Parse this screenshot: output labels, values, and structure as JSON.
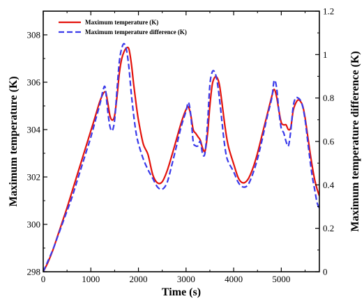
{
  "chart_data": {
    "type": "line",
    "title": "",
    "xlabel": "Time (s)",
    "ylabel_left": "Maximum temperature (K)",
    "ylabel_right": "Maximum temperature difference (K)",
    "xlim": [
      0,
      5800
    ],
    "ylim_left": [
      298,
      309
    ],
    "ylim_right": [
      0,
      1.2
    ],
    "x_ticks": [
      0,
      1000,
      2000,
      3000,
      4000,
      5000
    ],
    "y_left_ticks": [
      298,
      300,
      302,
      304,
      306,
      308
    ],
    "y_right_ticks": [
      0,
      0.2,
      0.4,
      0.6,
      0.8,
      1,
      1.2
    ],
    "x_tick_labels": [
      "0",
      "1000",
      "2000",
      "3000",
      "4000",
      "5000"
    ],
    "y_left_tick_labels": [
      "298",
      "300",
      "302",
      "304",
      "306",
      "308"
    ],
    "y_right_tick_labels": [
      "0",
      "0.2",
      "0.4",
      "0.6",
      "0.8",
      "1",
      "1.2"
    ],
    "legend_position": "top-left",
    "grid": false,
    "series": [
      {
        "name": "Maximum temperature (K)",
        "axis": "left",
        "color": "#e3120b",
        "style": "solid",
        "x": [
          0,
          100,
          200,
          300,
          400,
          500,
          600,
          700,
          800,
          900,
          1000,
          1100,
          1200,
          1300,
          1350,
          1400,
          1450,
          1500,
          1550,
          1600,
          1650,
          1700,
          1750,
          1800,
          1850,
          1900,
          1950,
          2000,
          2100,
          2200,
          2300,
          2400,
          2500,
          2600,
          2700,
          2800,
          2900,
          3000,
          3050,
          3100,
          3150,
          3200,
          3250,
          3300,
          3350,
          3400,
          3450,
          3500,
          3550,
          3600,
          3650,
          3700,
          3750,
          3800,
          3850,
          3900,
          4000,
          4100,
          4200,
          4300,
          4400,
          4500,
          4600,
          4700,
          4800,
          4850,
          4900,
          4950,
          5000,
          5050,
          5100,
          5150,
          5200,
          5250,
          5300,
          5350,
          5400,
          5450,
          5500,
          5550,
          5600,
          5650,
          5700,
          5750,
          5800
        ],
        "values": [
          298.0,
          298.4,
          298.9,
          299.5,
          300.1,
          300.7,
          301.35,
          302.0,
          302.65,
          303.3,
          303.95,
          304.6,
          305.25,
          305.6,
          305.2,
          304.6,
          304.4,
          304.6,
          305.4,
          306.4,
          307.0,
          307.3,
          307.45,
          307.4,
          306.8,
          305.9,
          305.1,
          304.4,
          303.4,
          302.95,
          302.1,
          301.75,
          301.8,
          302.25,
          302.9,
          303.6,
          304.3,
          304.85,
          304.95,
          304.6,
          304.0,
          303.85,
          303.7,
          303.55,
          303.2,
          303.1,
          303.8,
          305.0,
          305.9,
          306.2,
          306.2,
          305.9,
          305.2,
          304.4,
          303.7,
          303.2,
          302.55,
          301.95,
          301.75,
          301.9,
          302.35,
          303.0,
          303.8,
          304.6,
          305.4,
          305.7,
          305.4,
          304.8,
          304.3,
          304.2,
          304.2,
          304.0,
          304.1,
          304.8,
          305.1,
          305.25,
          305.2,
          305.0,
          304.5,
          303.8,
          303.1,
          302.45,
          301.9,
          301.5,
          301.2
        ]
      },
      {
        "name": "Maximum temperature difference (K)",
        "axis": "right",
        "color": "#3a3aea",
        "style": "dashed",
        "x": [
          0,
          100,
          200,
          300,
          400,
          500,
          600,
          700,
          800,
          900,
          1000,
          1100,
          1200,
          1250,
          1300,
          1350,
          1400,
          1450,
          1500,
          1550,
          1600,
          1650,
          1700,
          1750,
          1800,
          1850,
          1900,
          1950,
          2000,
          2100,
          2200,
          2300,
          2400,
          2500,
          2600,
          2700,
          2800,
          2900,
          3000,
          3050,
          3100,
          3150,
          3200,
          3250,
          3300,
          3350,
          3400,
          3450,
          3500,
          3550,
          3600,
          3650,
          3700,
          3750,
          3800,
          3850,
          3900,
          4000,
          4100,
          4200,
          4300,
          4400,
          4500,
          4600,
          4700,
          4800,
          4850,
          4900,
          4950,
          5000,
          5050,
          5100,
          5150,
          5200,
          5250,
          5300,
          5350,
          5400,
          5450,
          5500,
          5550,
          5600,
          5650,
          5700,
          5750,
          5800
        ],
        "values": [
          0.0,
          0.05,
          0.1,
          0.16,
          0.22,
          0.28,
          0.34,
          0.41,
          0.48,
          0.55,
          0.62,
          0.7,
          0.78,
          0.83,
          0.85,
          0.75,
          0.67,
          0.65,
          0.7,
          0.84,
          0.97,
          1.03,
          1.05,
          1.02,
          0.94,
          0.82,
          0.72,
          0.64,
          0.59,
          0.52,
          0.47,
          0.43,
          0.39,
          0.38,
          0.41,
          0.49,
          0.58,
          0.67,
          0.74,
          0.78,
          0.72,
          0.6,
          0.58,
          0.58,
          0.6,
          0.54,
          0.55,
          0.68,
          0.86,
          0.92,
          0.92,
          0.88,
          0.8,
          0.7,
          0.6,
          0.53,
          0.5,
          0.46,
          0.41,
          0.39,
          0.4,
          0.45,
          0.52,
          0.61,
          0.71,
          0.8,
          0.88,
          0.85,
          0.74,
          0.66,
          0.64,
          0.6,
          0.58,
          0.65,
          0.76,
          0.8,
          0.8,
          0.79,
          0.76,
          0.7,
          0.61,
          0.52,
          0.44,
          0.38,
          0.32,
          0.29
        ]
      }
    ]
  }
}
